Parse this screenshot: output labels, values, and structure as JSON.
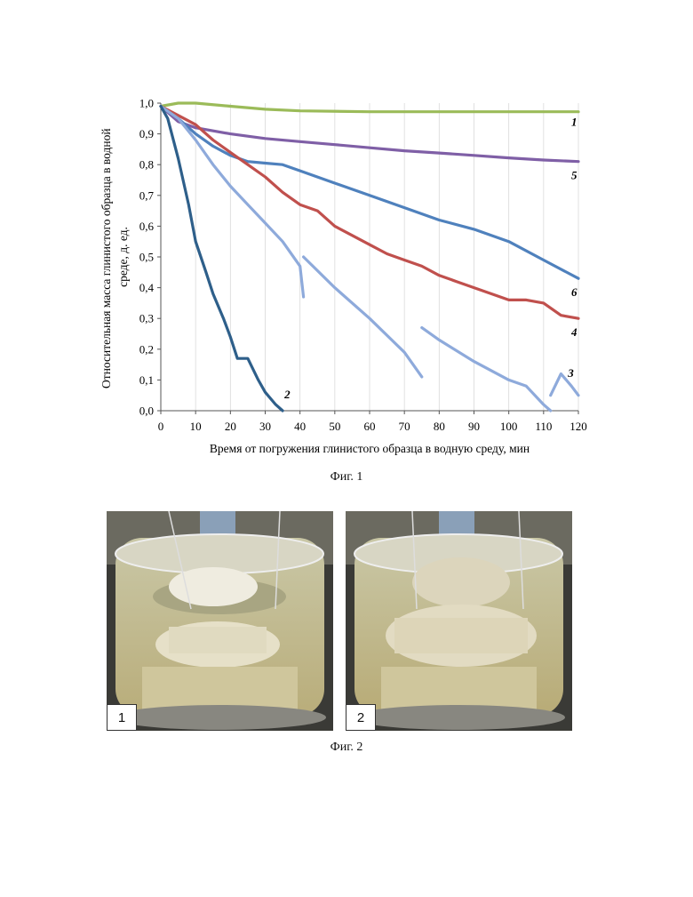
{
  "chart_data": {
    "type": "line",
    "title": "",
    "xlabel": "Время от погружения глинистого образца в водную среду, мин",
    "ylabel": "Относительная масса глинистого образца в водной среде, д. ед.",
    "xlim": [
      0,
      120
    ],
    "ylim": [
      0,
      1.0
    ],
    "x_ticks": [
      "0",
      "10",
      "20",
      "30",
      "40",
      "50",
      "60",
      "70",
      "80",
      "90",
      "100",
      "110",
      "120"
    ],
    "y_ticks": [
      "0,0",
      "0,1",
      "0,2",
      "0,3",
      "0,4",
      "0,5",
      "0,6",
      "0,7",
      "0,8",
      "0,9",
      "1,0"
    ],
    "grid": "vertical",
    "series": [
      {
        "name": "1",
        "color": "#9bbb59",
        "segments": [
          [
            [
              0,
              0.99
            ],
            [
              5,
              1.0
            ],
            [
              10,
              1.0
            ],
            [
              20,
              0.99
            ],
            [
              30,
              0.98
            ],
            [
              40,
              0.975
            ],
            [
              60,
              0.972
            ],
            [
              80,
              0.972
            ],
            [
              100,
              0.972
            ],
            [
              120,
              0.972
            ]
          ]
        ]
      },
      {
        "name": "5",
        "color": "#7f5fa6",
        "segments": [
          [
            [
              0,
              0.99
            ],
            [
              5,
              0.94
            ],
            [
              10,
              0.92
            ],
            [
              20,
              0.9
            ],
            [
              30,
              0.885
            ],
            [
              40,
              0.875
            ],
            [
              50,
              0.865
            ],
            [
              60,
              0.855
            ],
            [
              70,
              0.845
            ],
            [
              80,
              0.838
            ],
            [
              90,
              0.83
            ],
            [
              100,
              0.822
            ],
            [
              110,
              0.815
            ],
            [
              120,
              0.81
            ]
          ]
        ]
      },
      {
        "name": "6",
        "color": "#4f81bd",
        "segments": [
          [
            [
              0,
              0.99
            ],
            [
              5,
              0.95
            ],
            [
              10,
              0.9
            ],
            [
              15,
              0.86
            ],
            [
              20,
              0.83
            ],
            [
              25,
              0.81
            ],
            [
              30,
              0.805
            ],
            [
              35,
              0.8
            ],
            [
              40,
              0.78
            ],
            [
              50,
              0.74
            ],
            [
              60,
              0.7
            ],
            [
              70,
              0.66
            ],
            [
              80,
              0.62
            ],
            [
              90,
              0.59
            ],
            [
              100,
              0.55
            ],
            [
              110,
              0.49
            ],
            [
              120,
              0.43
            ]
          ]
        ]
      },
      {
        "name": "4",
        "color": "#c0504d",
        "segments": [
          [
            [
              0,
              0.99
            ],
            [
              5,
              0.96
            ],
            [
              10,
              0.93
            ],
            [
              15,
              0.88
            ],
            [
              20,
              0.84
            ],
            [
              25,
              0.8
            ],
            [
              30,
              0.76
            ],
            [
              35,
              0.71
            ],
            [
              40,
              0.67
            ],
            [
              45,
              0.65
            ],
            [
              50,
              0.6
            ],
            [
              55,
              0.57
            ],
            [
              60,
              0.54
            ],
            [
              65,
              0.51
            ],
            [
              70,
              0.49
            ],
            [
              75,
              0.47
            ],
            [
              80,
              0.44
            ],
            [
              85,
              0.42
            ],
            [
              90,
              0.4
            ],
            [
              95,
              0.38
            ],
            [
              100,
              0.36
            ],
            [
              105,
              0.36
            ],
            [
              110,
              0.35
            ],
            [
              115,
              0.31
            ],
            [
              120,
              0.3
            ]
          ]
        ]
      },
      {
        "name": "3",
        "color": "#8eaadb",
        "segments": [
          [
            [
              0,
              0.99
            ],
            [
              5,
              0.95
            ],
            [
              10,
              0.88
            ],
            [
              15,
              0.8
            ],
            [
              20,
              0.73
            ],
            [
              25,
              0.67
            ],
            [
              30,
              0.61
            ],
            [
              35,
              0.55
            ],
            [
              40,
              0.47
            ],
            [
              41,
              0.37
            ]
          ],
          [
            [
              41,
              0.5
            ],
            [
              50,
              0.4
            ],
            [
              60,
              0.3
            ],
            [
              70,
              0.19
            ],
            [
              75,
              0.11
            ]
          ],
          [
            [
              75,
              0.27
            ],
            [
              80,
              0.23
            ],
            [
              90,
              0.16
            ],
            [
              100,
              0.1
            ],
            [
              105,
              0.08
            ],
            [
              110,
              0.02
            ],
            [
              112,
              0.0
            ]
          ],
          [
            [
              112,
              0.05
            ],
            [
              115,
              0.12
            ],
            [
              118,
              0.08
            ],
            [
              120,
              0.05
            ]
          ]
        ]
      },
      {
        "name": "2",
        "color": "#2e5f8a",
        "segments": [
          [
            [
              0,
              0.99
            ],
            [
              2,
              0.95
            ],
            [
              5,
              0.82
            ],
            [
              8,
              0.67
            ],
            [
              10,
              0.55
            ],
            [
              13,
              0.45
            ],
            [
              15,
              0.38
            ],
            [
              18,
              0.3
            ],
            [
              20,
              0.24
            ],
            [
              22,
              0.17
            ],
            [
              25,
              0.17
            ],
            [
              28,
              0.1
            ],
            [
              30,
              0.06
            ],
            [
              33,
              0.02
            ],
            [
              35,
              0.0
            ]
          ]
        ]
      }
    ]
  },
  "figures": {
    "caption1": "Фиг. 1",
    "caption2": "Фиг. 2",
    "photo1_label": "1",
    "photo2_label": "2"
  }
}
